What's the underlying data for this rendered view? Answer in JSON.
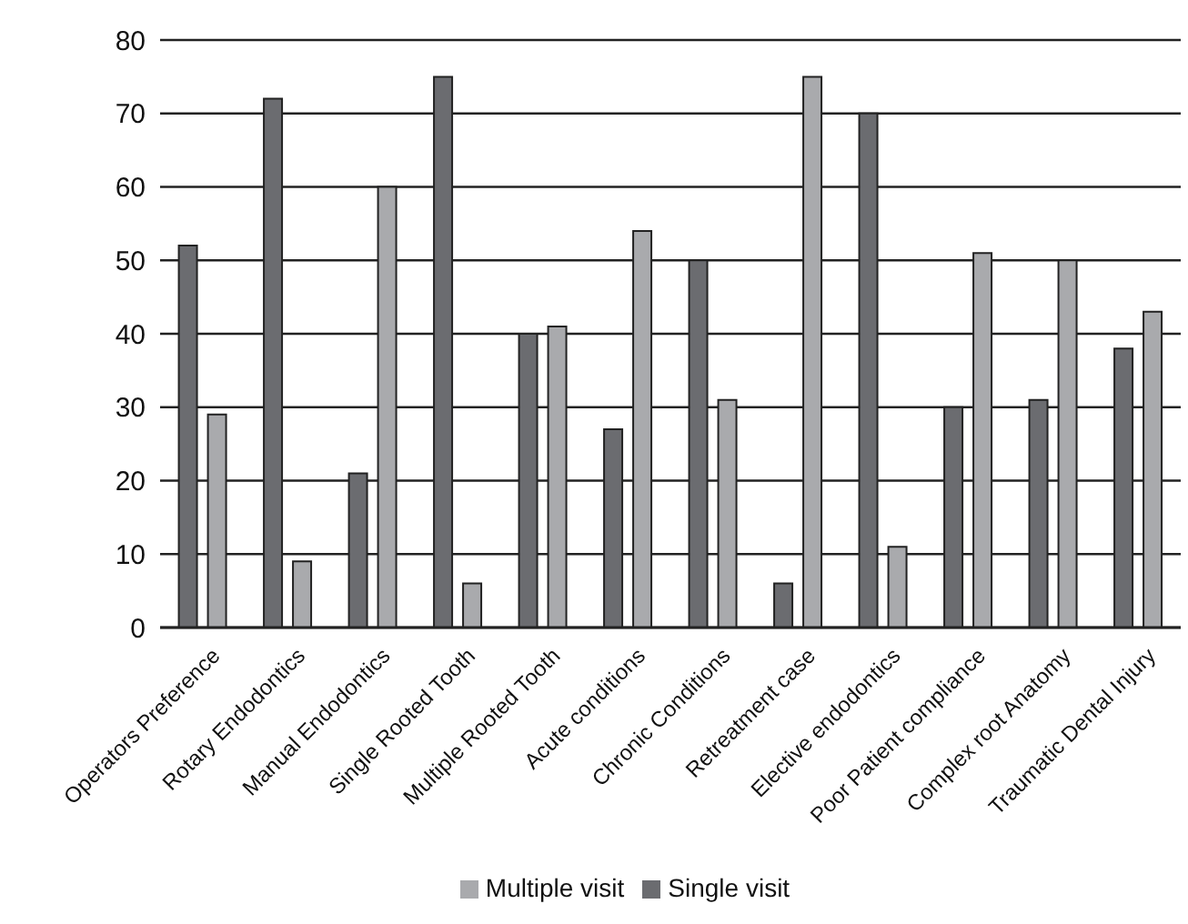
{
  "chart_data": {
    "type": "bar",
    "categories": [
      "Operators Preference",
      "Rotary Endodontics",
      "Manual Endodontics",
      "Single Rooted Tooth",
      "Multiple Rooted Tooth",
      "Acute conditions",
      "Chronic Conditions",
      "Retreatment case",
      "Elective endodontics",
      "Poor Patient compliance",
      "Complex root Anatomy",
      "Traumatic Dental Injury"
    ],
    "series": [
      {
        "name": "Single visit",
        "color": "#6b6c70",
        "values": [
          52,
          72,
          21,
          75,
          40,
          27,
          50,
          6,
          70,
          30,
          31,
          38
        ]
      },
      {
        "name": "Multiple visit",
        "color": "#a9aaad",
        "values": [
          29,
          9,
          60,
          6,
          41,
          54,
          31,
          75,
          11,
          51,
          50,
          43
        ]
      }
    ],
    "ylim": [
      0,
      80
    ],
    "yticks": [
      0,
      10,
      20,
      30,
      40,
      50,
      60,
      70,
      80
    ],
    "grid": "y",
    "legend": "bottom"
  }
}
